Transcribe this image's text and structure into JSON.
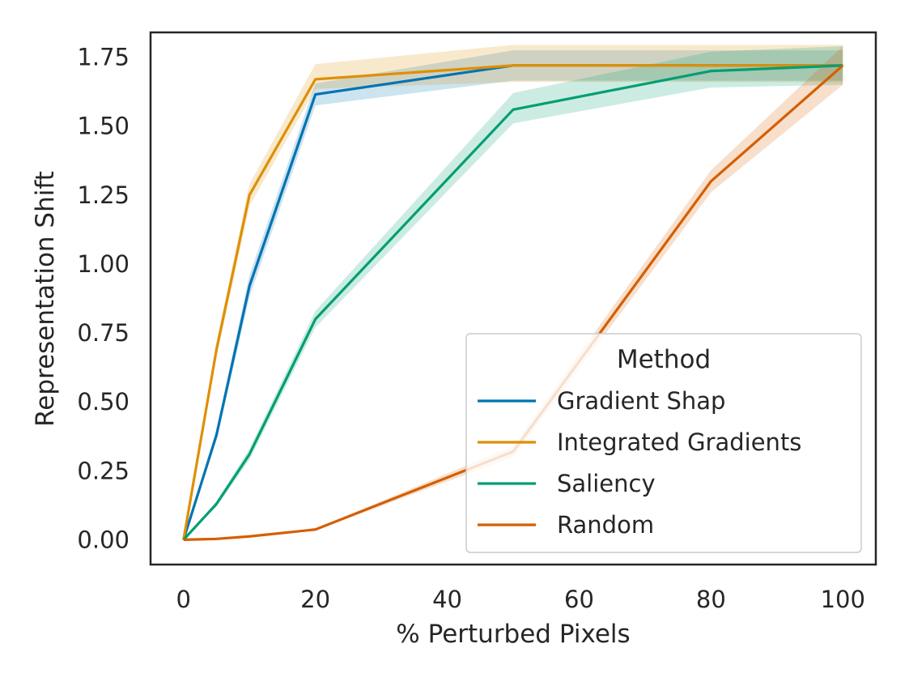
{
  "chart_data": {
    "type": "line",
    "xlabel": "% Perturbed Pixels",
    "ylabel": "Representation Shift",
    "xlim": [
      -5,
      105
    ],
    "ylim": [
      -0.09,
      1.84
    ],
    "x_ticks": [
      0,
      20,
      40,
      60,
      80,
      100
    ],
    "x_tick_labels": [
      "0",
      "20",
      "40",
      "60",
      "80",
      "100"
    ],
    "y_ticks": [
      0,
      0.25,
      0.5,
      0.75,
      1.0,
      1.25,
      1.5,
      1.75
    ],
    "y_tick_labels": [
      "0.00",
      "0.25",
      "0.50",
      "0.75",
      "1.00",
      "1.25",
      "1.50",
      "1.75"
    ],
    "grid": false,
    "legend": {
      "title": "Method",
      "placement": "lower-right"
    },
    "x": [
      0,
      5,
      10,
      20,
      50,
      80,
      100
    ],
    "series": [
      {
        "name": "Gradient Shap",
        "color": "#0173b2",
        "values": [
          0,
          0.38,
          0.92,
          1.615,
          1.72,
          1.72,
          1.72
        ],
        "lower": [
          0,
          0.36,
          0.88,
          1.575,
          1.665,
          1.665,
          1.665
        ],
        "upper": [
          0,
          0.4,
          0.96,
          1.655,
          1.775,
          1.775,
          1.775
        ]
      },
      {
        "name": "Integrated Gradients",
        "color": "#de8f05",
        "values": [
          0,
          0.69,
          1.25,
          1.67,
          1.72,
          1.72,
          1.72
        ],
        "lower": [
          0,
          0.66,
          1.21,
          1.635,
          1.66,
          1.66,
          1.66
        ],
        "upper": [
          0,
          0.72,
          1.29,
          1.725,
          1.795,
          1.795,
          1.795
        ]
      },
      {
        "name": "Saliency",
        "color": "#029e73",
        "values": [
          0,
          0.13,
          0.31,
          0.8,
          1.56,
          1.7,
          1.72
        ],
        "lower": [
          0,
          0.12,
          0.29,
          0.77,
          1.51,
          1.64,
          1.65
        ],
        "upper": [
          0,
          0.14,
          0.33,
          0.83,
          1.62,
          1.77,
          1.79
        ]
      },
      {
        "name": "Random",
        "color": "#d55e00",
        "values": [
          0,
          0.003,
          0.012,
          0.037,
          0.32,
          1.3,
          1.72
        ],
        "lower": [
          0,
          0.002,
          0.01,
          0.034,
          0.3,
          1.26,
          1.65
        ],
        "upper": [
          0,
          0.004,
          0.014,
          0.04,
          0.34,
          1.34,
          1.79
        ]
      }
    ]
  }
}
